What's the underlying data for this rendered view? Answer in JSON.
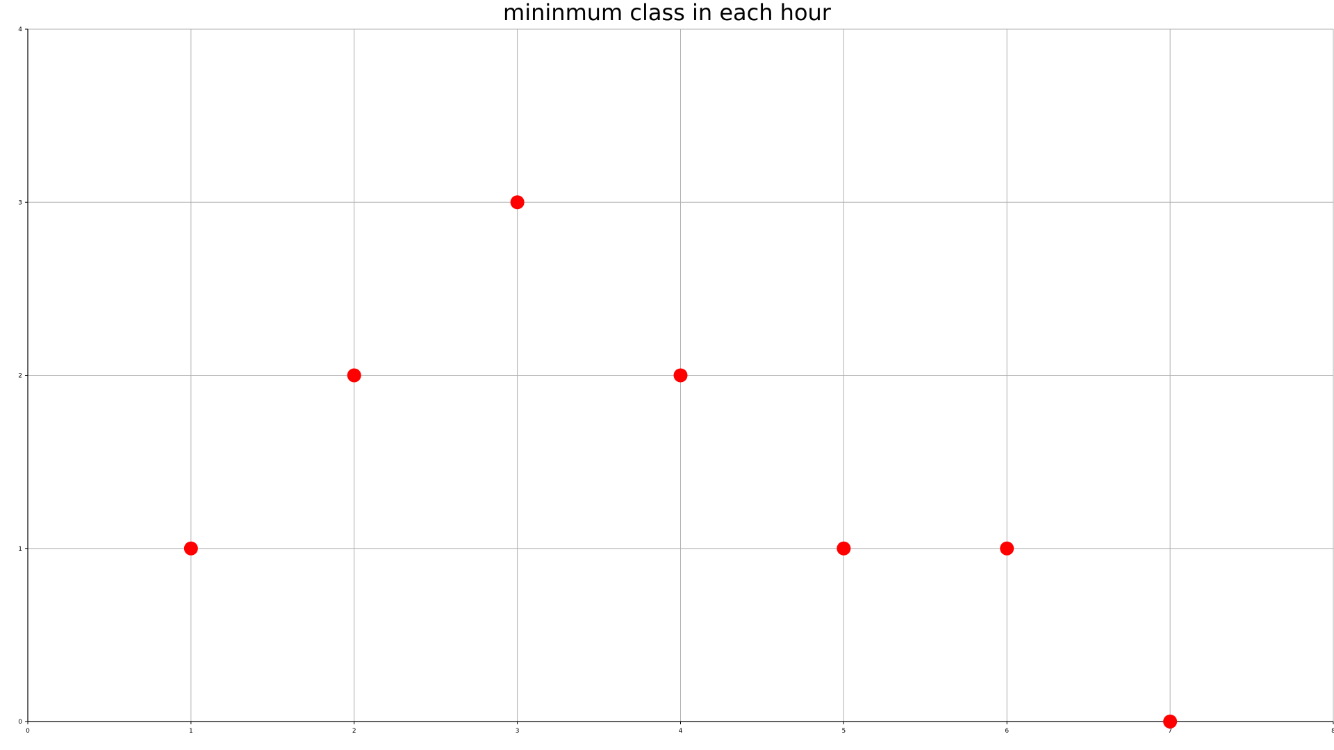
{
  "chart_data": {
    "type": "scatter",
    "title": "mininmum class in each hour",
    "xlabel": "",
    "ylabel": "",
    "xlim": [
      0,
      8
    ],
    "ylim": [
      0,
      4
    ],
    "x_ticks": [
      0,
      1,
      2,
      3,
      4,
      5,
      6,
      7,
      8
    ],
    "y_ticks": [
      0,
      1,
      2,
      3,
      4
    ],
    "grid": true,
    "series": [
      {
        "color": "#ff0000",
        "marker": "circle",
        "points": [
          {
            "x": 1,
            "y": 1
          },
          {
            "x": 2,
            "y": 2
          },
          {
            "x": 3,
            "y": 3
          },
          {
            "x": 4,
            "y": 2
          },
          {
            "x": 5,
            "y": 1
          },
          {
            "x": 6,
            "y": 1
          },
          {
            "x": 7,
            "y": 0
          }
        ]
      }
    ],
    "colors": {
      "grid": "#b0b0b0",
      "axis": "#000000",
      "marker": "#ff0000"
    }
  }
}
